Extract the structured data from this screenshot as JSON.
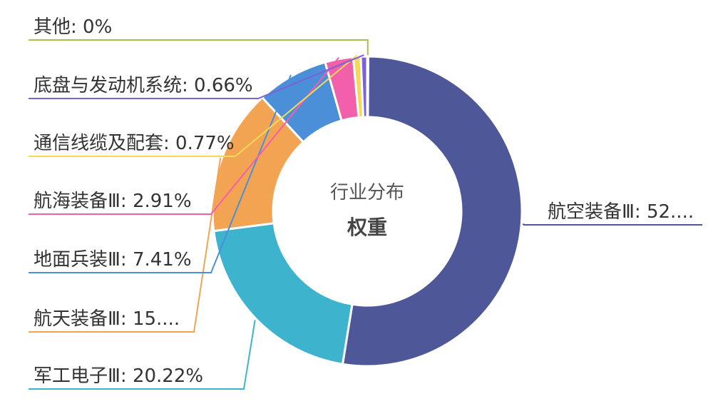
{
  "chart_data": {
    "type": "pie",
    "center_title": "行业分布",
    "center_subtitle": "权重",
    "slices": [
      {
        "name": "航空装备Ⅲ",
        "value": 52.0,
        "label": "航空装备Ⅲ: 52....",
        "color": "#4e5899"
      },
      {
        "name": "军工电子Ⅲ",
        "value": 20.22,
        "label": "军工电子Ⅲ: 20.22%",
        "color": "#3db3cd"
      },
      {
        "name": "航天装备Ⅲ",
        "value": 15.0,
        "label": "航天装备Ⅲ: 15....",
        "color": "#f2a453"
      },
      {
        "name": "地面兵装Ⅲ",
        "value": 7.41,
        "label": "地面兵装Ⅲ: 7.41%",
        "color": "#4a8fd8"
      },
      {
        "name": "航海装备Ⅲ",
        "value": 2.91,
        "label": "航海装备Ⅲ: 2.91%",
        "color": "#f25fab"
      },
      {
        "name": "通信线缆及配套",
        "value": 0.77,
        "label": "通信线缆及配套: 0.77%",
        "color": "#f2d95a"
      },
      {
        "name": "底盘与发动机系统",
        "value": 0.66,
        "label": "底盘与发动机系统: 0.66%",
        "color": "#7c62d6"
      },
      {
        "name": "其他",
        "value": 0,
        "label": "其他: 0%",
        "color": "#a6c24b"
      }
    ]
  }
}
